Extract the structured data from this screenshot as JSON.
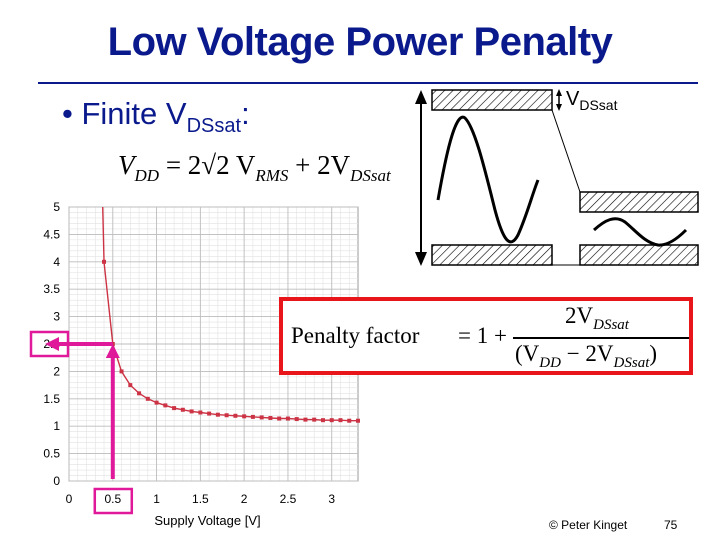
{
  "slide": {
    "title": "Low Voltage Power Penalty",
    "bullet_prefix": "Finite V",
    "bullet_sub": "DSsat",
    "bullet_suffix": ":",
    "footer_copyright": "© Peter Kinget",
    "page_number": "75"
  },
  "formula_vdd": {
    "lhs": "V",
    "lhs_sub": "DD",
    "rhs_a": "= 2√2 V",
    "rhs_a_sub": "RMS",
    "rhs_b": "+ 2V",
    "rhs_b_sub": "DSsat"
  },
  "penalty": {
    "label": "Penalty factor",
    "eq": "= 1 +",
    "num": "2V",
    "num_sub": "DSsat",
    "den_a": "(V",
    "den_a_sub": "DD",
    "den_b": " − 2V",
    "den_b_sub": "DSsat",
    "den_c": ")"
  },
  "diagram": {
    "vdssat_label": "V",
    "vdssat_sub": "DSsat"
  },
  "highlight": {
    "x_value": "0.5",
    "y_value": "2.5",
    "color": "#e0189a"
  },
  "chart_data": {
    "type": "line",
    "title": "",
    "xlabel": "Supply Voltage [V]",
    "ylabel": "",
    "xlim": [
      0,
      3.3
    ],
    "ylim": [
      0,
      5
    ],
    "x_ticks": [
      "0",
      "0.5",
      "1",
      "1.5",
      "2",
      "2.5",
      "3"
    ],
    "y_ticks": [
      "0",
      "0.5",
      "1",
      "1.5",
      "2",
      "2.5",
      "3",
      "3.5",
      "4",
      "4.5",
      "5"
    ],
    "grid": true,
    "series": [
      {
        "color": "#cc3344",
        "x": [
          0.4,
          0.5,
          0.6,
          0.7,
          0.8,
          0.9,
          1.0,
          1.1,
          1.2,
          1.3,
          1.4,
          1.5,
          1.6,
          1.7,
          1.8,
          1.9,
          2.0,
          2.1,
          2.2,
          2.3,
          2.4,
          2.5,
          2.6,
          2.7,
          2.8,
          2.9,
          3.0,
          3.1,
          3.2,
          3.3
        ],
        "y": [
          4.0,
          2.5,
          2.0,
          1.75,
          1.6,
          1.5,
          1.43,
          1.38,
          1.33,
          1.3,
          1.27,
          1.25,
          1.23,
          1.21,
          1.2,
          1.19,
          1.18,
          1.17,
          1.16,
          1.15,
          1.14,
          1.14,
          1.13,
          1.12,
          1.12,
          1.11,
          1.11,
          1.11,
          1.1,
          1.1
        ]
      }
    ]
  }
}
